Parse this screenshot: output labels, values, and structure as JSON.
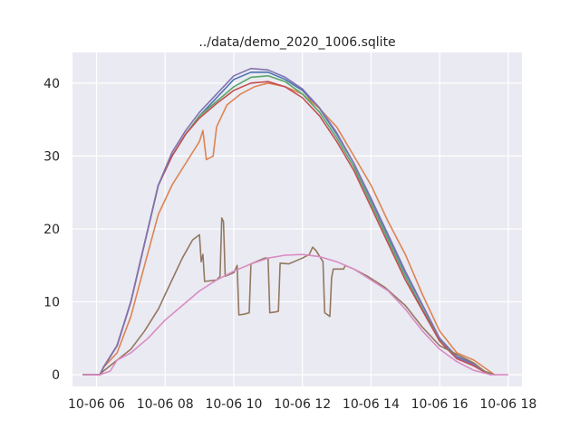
{
  "chart_data": {
    "type": "line",
    "title": "../data/demo_2020_1006.sqlite",
    "xlabel": "",
    "ylabel": "",
    "x_unit": "hours (2020-10-06)",
    "xlim": [
      5.3,
      18.4
    ],
    "ylim": [
      -1.6,
      44.2
    ],
    "x_ticks": [
      {
        "value": 6,
        "label": "10-06 06"
      },
      {
        "value": 8,
        "label": "10-06 08"
      },
      {
        "value": 10,
        "label": "10-06 10"
      },
      {
        "value": 12,
        "label": "10-06 12"
      },
      {
        "value": 14,
        "label": "10-06 14"
      },
      {
        "value": 16,
        "label": "10-06 16"
      },
      {
        "value": 18,
        "label": "10-06 18"
      }
    ],
    "y_ticks": [
      0,
      10,
      20,
      30,
      40
    ],
    "grid": true,
    "background": "#eaeaf2",
    "series": [
      {
        "color": "#4c72b0",
        "points": [
          [
            5.6,
            0
          ],
          [
            6.1,
            0
          ],
          [
            6.2,
            1
          ],
          [
            6.6,
            4
          ],
          [
            7.0,
            10
          ],
          [
            7.4,
            18
          ],
          [
            7.8,
            26
          ],
          [
            8.2,
            30
          ],
          [
            8.6,
            33
          ],
          [
            9.0,
            35.5
          ],
          [
            9.5,
            38
          ],
          [
            10.0,
            40.5
          ],
          [
            10.5,
            41.5
          ],
          [
            11.0,
            41.5
          ],
          [
            11.5,
            40.5
          ],
          [
            12.0,
            39
          ],
          [
            12.5,
            36.5
          ],
          [
            13.0,
            33
          ],
          [
            13.5,
            29
          ],
          [
            14.0,
            24
          ],
          [
            14.5,
            19
          ],
          [
            15.0,
            14
          ],
          [
            15.5,
            9.5
          ],
          [
            16.0,
            5
          ],
          [
            16.5,
            2.5
          ],
          [
            17.0,
            1.5
          ],
          [
            17.3,
            0.5
          ],
          [
            17.5,
            0
          ]
        ]
      },
      {
        "color": "#dd8452",
        "points": [
          [
            5.6,
            0
          ],
          [
            6.1,
            0
          ],
          [
            6.2,
            1
          ],
          [
            6.6,
            3
          ],
          [
            7.0,
            8
          ],
          [
            7.4,
            15
          ],
          [
            7.8,
            22
          ],
          [
            8.2,
            26
          ],
          [
            8.6,
            29
          ],
          [
            9.0,
            32
          ],
          [
            9.1,
            33.5
          ],
          [
            9.2,
            29.5
          ],
          [
            9.4,
            30
          ],
          [
            9.5,
            34
          ],
          [
            9.8,
            37
          ],
          [
            10.2,
            38.5
          ],
          [
            10.6,
            39.5
          ],
          [
            11.0,
            40
          ],
          [
            11.5,
            39.5
          ],
          [
            12.0,
            38.5
          ],
          [
            12.5,
            36.5
          ],
          [
            13.0,
            34
          ],
          [
            13.5,
            30
          ],
          [
            14.0,
            26
          ],
          [
            14.5,
            21
          ],
          [
            15.0,
            16.5
          ],
          [
            15.5,
            11
          ],
          [
            16.0,
            6
          ],
          [
            16.5,
            3
          ],
          [
            17.0,
            2
          ],
          [
            17.3,
            1
          ],
          [
            17.6,
            0
          ]
        ]
      },
      {
        "color": "#55a868",
        "points": [
          [
            5.6,
            0
          ],
          [
            6.1,
            0
          ],
          [
            6.2,
            1
          ],
          [
            6.6,
            4
          ],
          [
            7.0,
            10
          ],
          [
            7.4,
            18
          ],
          [
            7.8,
            26
          ],
          [
            8.2,
            30
          ],
          [
            8.6,
            33
          ],
          [
            9.0,
            35.5
          ],
          [
            9.5,
            37.5
          ],
          [
            10.0,
            39.5
          ],
          [
            10.5,
            40.8
          ],
          [
            11.0,
            41
          ],
          [
            11.5,
            40.2
          ],
          [
            12.0,
            38.5
          ],
          [
            12.5,
            36
          ],
          [
            13.0,
            32.5
          ],
          [
            13.5,
            28.5
          ],
          [
            14.0,
            23.5
          ],
          [
            14.5,
            18.5
          ],
          [
            15.0,
            13.5
          ],
          [
            15.5,
            9
          ],
          [
            16.0,
            4.8
          ],
          [
            16.5,
            2.3
          ],
          [
            17.0,
            1.3
          ],
          [
            17.3,
            0.4
          ],
          [
            17.5,
            0
          ]
        ]
      },
      {
        "color": "#c44e52",
        "points": [
          [
            5.6,
            0
          ],
          [
            6.1,
            0
          ],
          [
            6.2,
            1
          ],
          [
            6.6,
            4
          ],
          [
            7.0,
            10
          ],
          [
            7.4,
            18
          ],
          [
            7.8,
            26
          ],
          [
            8.2,
            30
          ],
          [
            8.6,
            33
          ],
          [
            9.0,
            35.2
          ],
          [
            9.5,
            37.2
          ],
          [
            10.0,
            39
          ],
          [
            10.5,
            40
          ],
          [
            11.0,
            40.2
          ],
          [
            11.5,
            39.5
          ],
          [
            12.0,
            38
          ],
          [
            12.5,
            35.5
          ],
          [
            13.0,
            32
          ],
          [
            13.5,
            28
          ],
          [
            14.0,
            23
          ],
          [
            14.5,
            18
          ],
          [
            15.0,
            13
          ],
          [
            15.5,
            8.8
          ],
          [
            16.0,
            4.6
          ],
          [
            16.5,
            2.2
          ],
          [
            17.0,
            1.2
          ],
          [
            17.3,
            0.4
          ],
          [
            17.5,
            0
          ]
        ]
      },
      {
        "color": "#8172b3",
        "points": [
          [
            5.6,
            0
          ],
          [
            6.1,
            0
          ],
          [
            6.2,
            1
          ],
          [
            6.6,
            4
          ],
          [
            7.0,
            10
          ],
          [
            7.4,
            18
          ],
          [
            7.8,
            26
          ],
          [
            8.2,
            30.5
          ],
          [
            8.6,
            33.5
          ],
          [
            9.0,
            36
          ],
          [
            9.5,
            38.5
          ],
          [
            10.0,
            41
          ],
          [
            10.5,
            42
          ],
          [
            11.0,
            41.8
          ],
          [
            11.5,
            40.8
          ],
          [
            12.0,
            39.2
          ],
          [
            12.5,
            36.6
          ],
          [
            13.0,
            33.2
          ],
          [
            13.5,
            29
          ],
          [
            14.0,
            24.2
          ],
          [
            14.5,
            19.2
          ],
          [
            15.0,
            14.2
          ],
          [
            15.5,
            9.6
          ],
          [
            16.0,
            5
          ],
          [
            16.5,
            2.4
          ],
          [
            17.0,
            1.4
          ],
          [
            17.3,
            0.5
          ],
          [
            17.5,
            0
          ]
        ]
      },
      {
        "color": "#937860",
        "points": [
          [
            5.6,
            0
          ],
          [
            6.1,
            0
          ],
          [
            6.2,
            0.5
          ],
          [
            6.6,
            2
          ],
          [
            7.0,
            3.5
          ],
          [
            7.4,
            6
          ],
          [
            7.8,
            9
          ],
          [
            8.0,
            11
          ],
          [
            8.2,
            13
          ],
          [
            8.5,
            16
          ],
          [
            8.8,
            18.5
          ],
          [
            9.0,
            19.2
          ],
          [
            9.05,
            15.5
          ],
          [
            9.1,
            16.5
          ],
          [
            9.15,
            12.8
          ],
          [
            9.5,
            13
          ],
          [
            9.6,
            13.5
          ],
          [
            9.65,
            21.5
          ],
          [
            9.7,
            21
          ],
          [
            9.75,
            13.5
          ],
          [
            10.0,
            14
          ],
          [
            10.1,
            15
          ],
          [
            10.15,
            8.2
          ],
          [
            10.3,
            8.3
          ],
          [
            10.45,
            8.5
          ],
          [
            10.5,
            15.2
          ],
          [
            10.9,
            16
          ],
          [
            11.0,
            16
          ],
          [
            11.05,
            8.5
          ],
          [
            11.2,
            8.6
          ],
          [
            11.3,
            8.7
          ],
          [
            11.35,
            15.3
          ],
          [
            11.6,
            15.2
          ],
          [
            11.9,
            15.8
          ],
          [
            12.0,
            16
          ],
          [
            12.2,
            16.5
          ],
          [
            12.3,
            17.5
          ],
          [
            12.4,
            17
          ],
          [
            12.6,
            15.5
          ],
          [
            12.65,
            8.5
          ],
          [
            12.8,
            8
          ],
          [
            12.85,
            13.3
          ],
          [
            12.9,
            14.5
          ],
          [
            13.2,
            14.5
          ],
          [
            13.25,
            15
          ],
          [
            13.5,
            14.5
          ],
          [
            13.9,
            13.5
          ],
          [
            14.4,
            12
          ],
          [
            15.0,
            9.5
          ],
          [
            15.5,
            6.5
          ],
          [
            16.0,
            4
          ],
          [
            16.5,
            2.8
          ],
          [
            17.0,
            1.6
          ],
          [
            17.3,
            0.5
          ],
          [
            17.6,
            0
          ]
        ]
      },
      {
        "color": "#da8bc3",
        "points": [
          [
            5.6,
            0
          ],
          [
            6.1,
            0
          ],
          [
            6.4,
            0.5
          ],
          [
            6.6,
            2
          ],
          [
            7.0,
            3
          ],
          [
            7.5,
            5
          ],
          [
            8.0,
            7.5
          ],
          [
            8.5,
            9.5
          ],
          [
            9.0,
            11.5
          ],
          [
            9.5,
            13
          ],
          [
            10.0,
            14.2
          ],
          [
            10.5,
            15.2
          ],
          [
            11.0,
            16
          ],
          [
            11.5,
            16.4
          ],
          [
            12.0,
            16.5
          ],
          [
            12.5,
            16.2
          ],
          [
            13.0,
            15.5
          ],
          [
            13.5,
            14.5
          ],
          [
            14.0,
            13
          ],
          [
            14.5,
            11.5
          ],
          [
            15.0,
            9
          ],
          [
            15.5,
            6
          ],
          [
            16.0,
            3.5
          ],
          [
            16.5,
            1.8
          ],
          [
            17.0,
            0.6
          ],
          [
            17.5,
            0
          ],
          [
            18.0,
            0
          ]
        ]
      }
    ]
  }
}
